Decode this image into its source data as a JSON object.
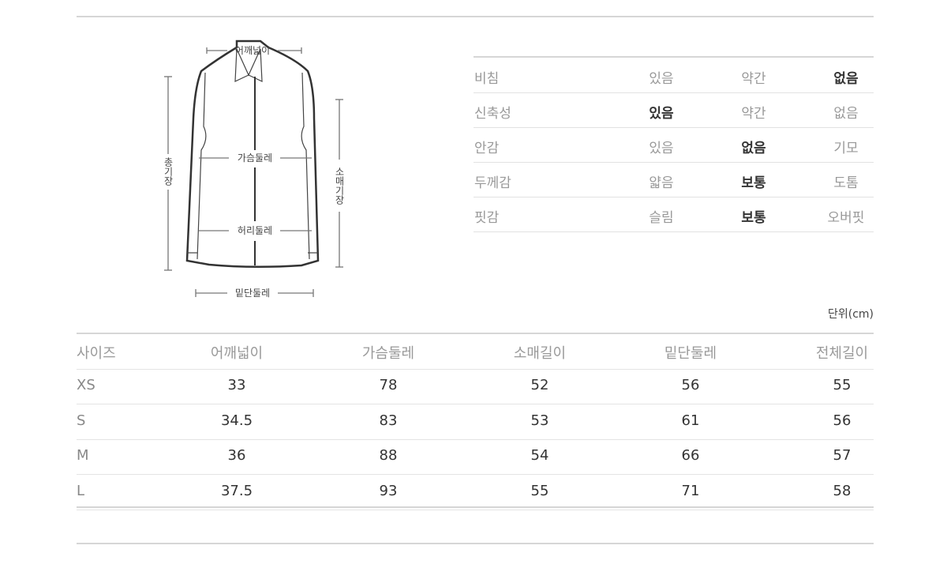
{
  "diagram": {
    "shoulder": "어깨넓이",
    "chest": "가슴둘레",
    "waist": "허리둘레",
    "hem": "밑단둘레",
    "total_length": "총기장",
    "sleeve_length": "소매기장"
  },
  "attributes": [
    {
      "label": "비침",
      "options": [
        "있음",
        "약간",
        "없음"
      ],
      "selected": 2
    },
    {
      "label": "신축성",
      "options": [
        "있음",
        "약간",
        "없음"
      ],
      "selected": 0
    },
    {
      "label": "안감",
      "options": [
        "있음",
        "없음",
        "기모"
      ],
      "selected": 1
    },
    {
      "label": "두께감",
      "options": [
        "얇음",
        "보통",
        "도톰"
      ],
      "selected": 1
    },
    {
      "label": "핏감",
      "options": [
        "슬림",
        "보통",
        "오버핏"
      ],
      "selected": 1
    }
  ],
  "unit": "단위(cm)",
  "size_table": {
    "headers": [
      "사이즈",
      "어깨넓이",
      "가슴둘레",
      "소매길이",
      "밑단둘레",
      "전체길이"
    ],
    "rows": [
      [
        "XS",
        "33",
        "78",
        "52",
        "56",
        "55"
      ],
      [
        "S",
        "34.5",
        "83",
        "53",
        "61",
        "56"
      ],
      [
        "M",
        "36",
        "88",
        "54",
        "66",
        "57"
      ],
      [
        "L",
        "37.5",
        "93",
        "55",
        "71",
        "58"
      ]
    ]
  }
}
